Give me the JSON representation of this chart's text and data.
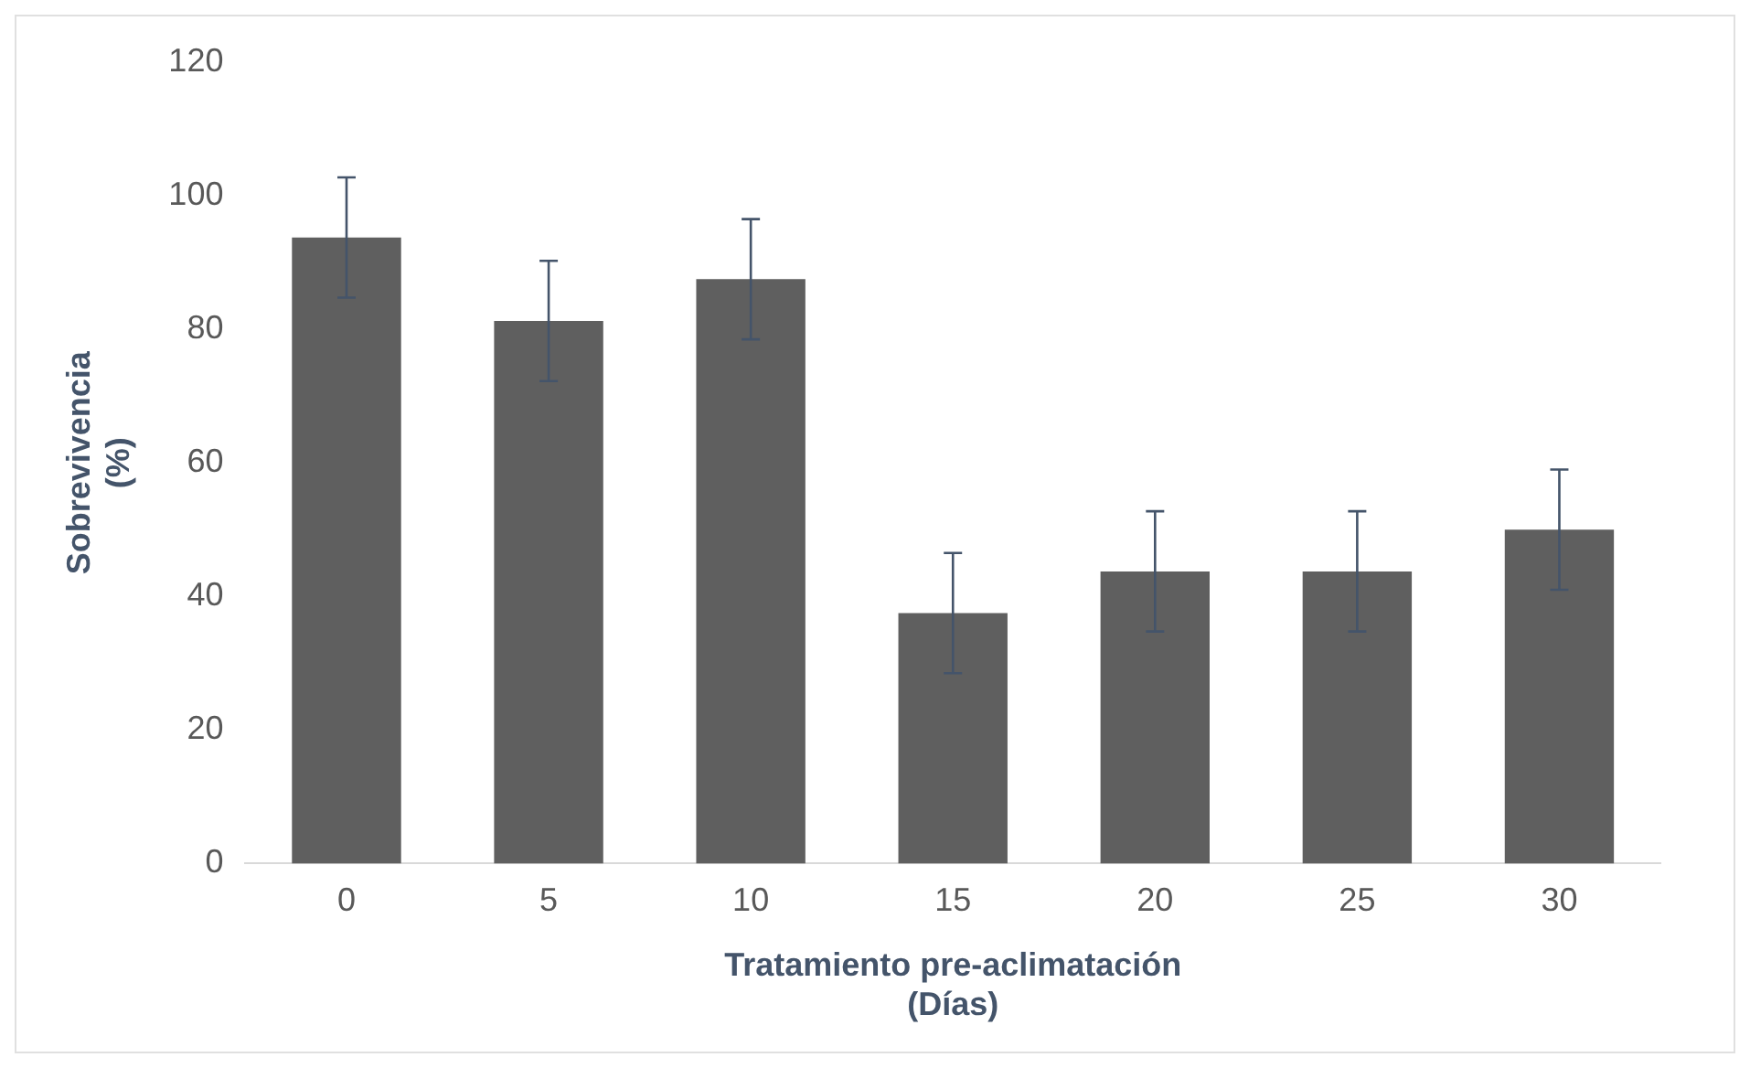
{
  "chart_data": {
    "type": "bar",
    "xlabel": "Tratamiento pre-aclimatación\n(Días)",
    "ylabel": "Sobrevivencia\n(%)",
    "categories": [
      "0",
      "5",
      "10",
      "15",
      "20",
      "25",
      "30"
    ],
    "values": [
      93.75,
      81.25,
      87.5,
      37.5,
      43.75,
      43.75,
      50
    ],
    "errors": [
      9,
      9,
      9,
      9,
      9,
      9,
      9
    ],
    "color": "#5f5f5f",
    "ylim": [
      0,
      120
    ],
    "yticks": [
      0,
      20,
      40,
      60,
      80,
      100,
      120
    ],
    "grid": false,
    "legend": false
  }
}
